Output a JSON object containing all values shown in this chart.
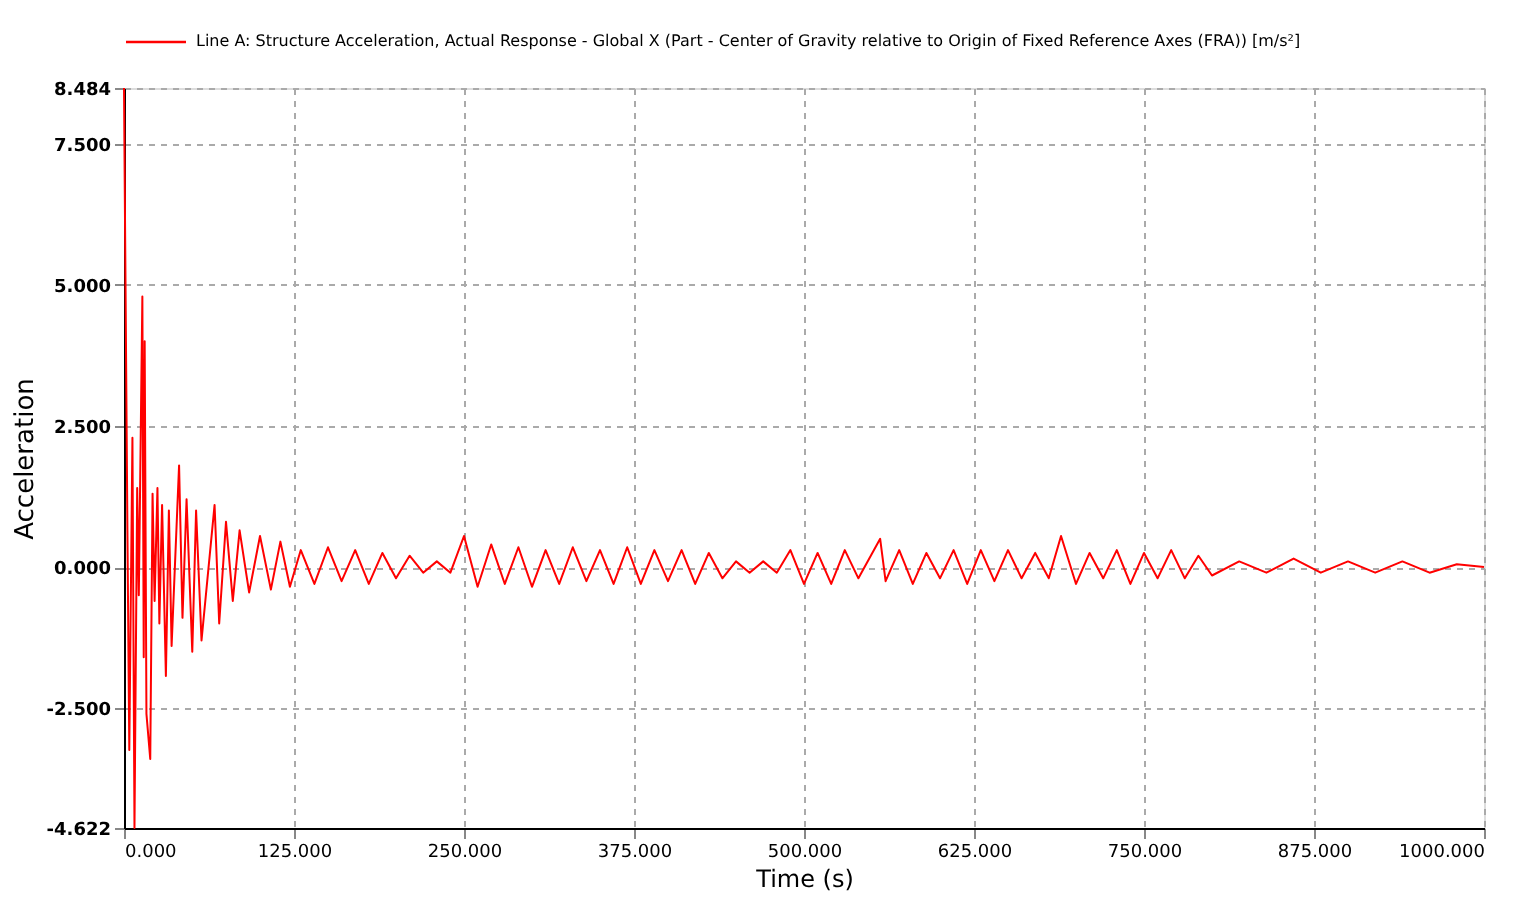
{
  "chart_data": {
    "type": "line",
    "xlabel": "Time (s)",
    "ylabel": "Acceleration",
    "xlim": [
      0,
      1000
    ],
    "ylim": [
      -4.622,
      8.484
    ],
    "xticks": [
      {
        "value": 0,
        "label": "0.000"
      },
      {
        "value": 125,
        "label": "125.000"
      },
      {
        "value": 250,
        "label": "250.000"
      },
      {
        "value": 375,
        "label": "375.000"
      },
      {
        "value": 500,
        "label": "500.000"
      },
      {
        "value": 625,
        "label": "625.000"
      },
      {
        "value": 750,
        "label": "750.000"
      },
      {
        "value": 875,
        "label": "875.000"
      },
      {
        "value": 1000,
        "label": "1000.000"
      }
    ],
    "yticks": [
      {
        "value": -4.622,
        "label": "-4.622"
      },
      {
        "value": -2.5,
        "label": "-2.500"
      },
      {
        "value": 0,
        "label": "0.000"
      },
      {
        "value": 2.5,
        "label": "2.500"
      },
      {
        "value": 5,
        "label": "5.000"
      },
      {
        "value": 7.5,
        "label": "7.500"
      },
      {
        "value": 8.484,
        "label": "8.484"
      }
    ],
    "grid": true,
    "legend": "top",
    "line_style": "solid",
    "series": [
      {
        "name": "Line A: Structure Acceleration, Actual Response - Global X (Part - Center of Gravity relative to Origin of Fixed Reference Axes (FRA)) [m/s²]",
        "color": "#ff0000",
        "x": [
          0,
          2.5,
          3.9,
          6.2,
          7.7,
          9.7,
          10.9,
          13.5,
          14.5,
          15.2,
          16.5,
          19.3,
          21,
          22.5,
          24.6,
          26,
          28,
          30.8,
          33,
          35,
          40.5,
          43,
          46,
          50.2,
          53,
          57,
          66.6,
          70,
          75,
          80,
          85,
          92,
          100,
          108,
          115,
          122,
          130,
          140,
          150,
          160,
          170,
          180,
          190,
          200,
          210,
          220,
          230,
          240,
          250,
          260,
          270,
          280,
          290,
          300,
          310,
          320,
          330,
          340,
          350,
          360,
          370,
          380,
          390,
          400,
          410,
          420,
          430,
          440,
          450,
          460,
          470,
          480,
          490,
          500,
          510,
          520,
          530,
          540,
          556,
          560,
          570,
          580,
          590,
          600,
          610,
          620,
          630,
          640,
          650,
          660,
          670,
          680,
          689,
          700,
          710,
          720,
          730,
          740,
          750,
          760,
          770,
          780,
          790,
          800,
          820,
          840,
          860,
          880,
          900,
          920,
          940,
          960,
          980,
          1000
        ],
        "values": [
          8.484,
          0.67,
          -3.24,
          2.29,
          -4.622,
          1.4,
          -0.5,
          4.79,
          -1.6,
          4.0,
          -2.6,
          -3.4,
          1.3,
          -0.6,
          1.4,
          -1.0,
          1.1,
          -1.93,
          1.0,
          -1.4,
          1.8,
          -0.9,
          1.2,
          -1.5,
          1.0,
          -1.3,
          1.1,
          -1.0,
          0.8,
          -0.6,
          0.65,
          -0.45,
          0.55,
          -0.4,
          0.45,
          -0.35,
          0.3,
          -0.3,
          0.35,
          -0.25,
          0.3,
          -0.3,
          0.25,
          -0.2,
          0.2,
          -0.1,
          0.1,
          -0.1,
          0.55,
          -0.35,
          0.4,
          -0.3,
          0.35,
          -0.35,
          0.3,
          -0.3,
          0.35,
          -0.25,
          0.3,
          -0.3,
          0.35,
          -0.3,
          0.3,
          -0.25,
          0.3,
          -0.3,
          0.25,
          -0.2,
          0.1,
          -0.1,
          0.1,
          -0.1,
          0.3,
          -0.3,
          0.25,
          -0.3,
          0.3,
          -0.2,
          0.5,
          -0.25,
          0.3,
          -0.3,
          0.25,
          -0.2,
          0.3,
          -0.3,
          0.3,
          -0.25,
          0.3,
          -0.2,
          0.25,
          -0.2,
          0.55,
          -0.3,
          0.25,
          -0.2,
          0.3,
          -0.3,
          0.25,
          -0.2,
          0.3,
          -0.2,
          0.2,
          -0.15,
          0.1,
          -0.1,
          0.15,
          -0.1,
          0.1,
          -0.1,
          0.1,
          -0.1,
          0.05,
          0
        ]
      }
    ]
  }
}
